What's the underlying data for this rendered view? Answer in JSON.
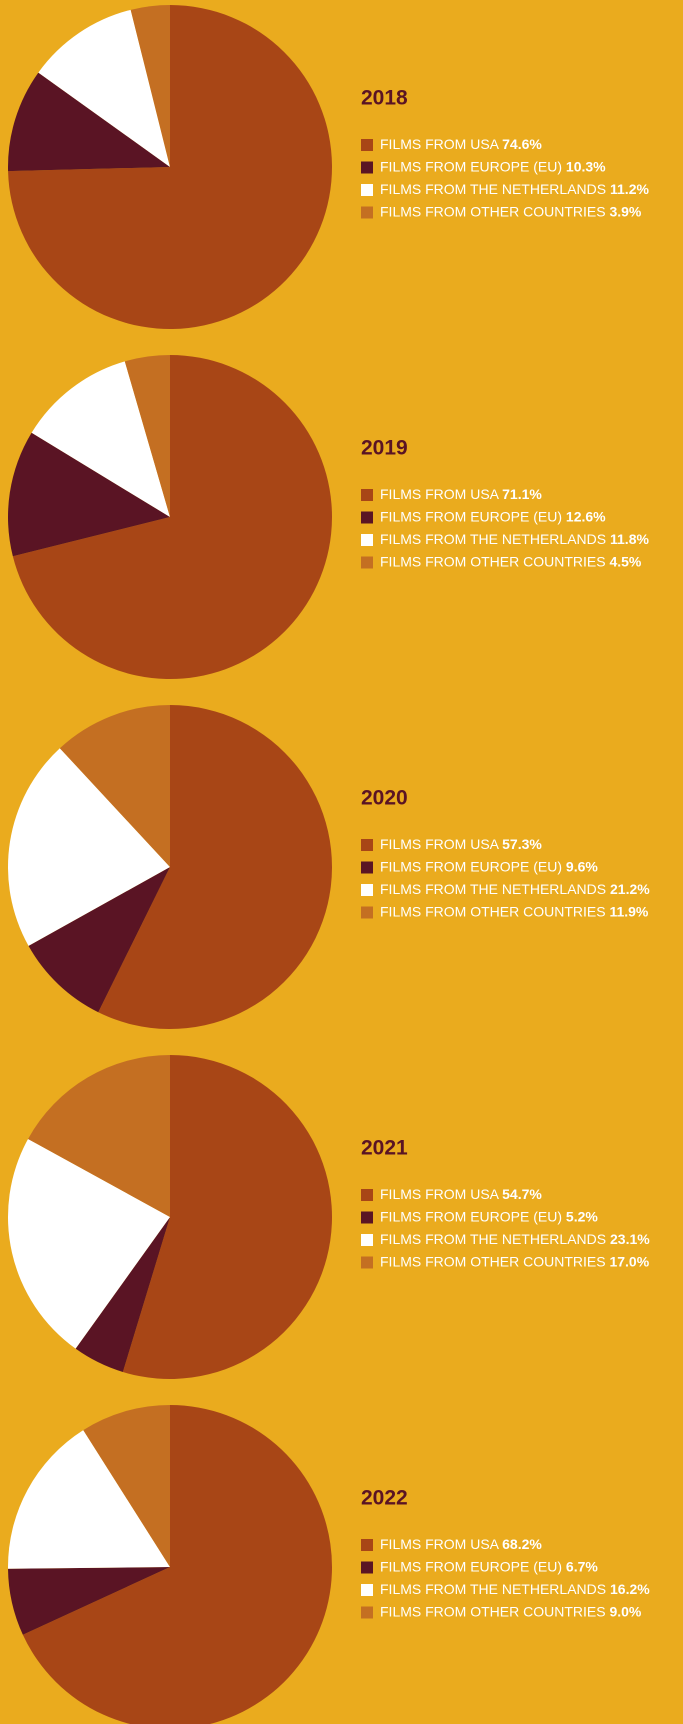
{
  "chart_data": [
    {
      "type": "pie",
      "title": "2018",
      "categories": [
        "FILMS FROM USA",
        "FILMS FROM EUROPE (EU)",
        "FILMS FROM THE NETHERLANDS",
        "FILMS FROM OTHER COUNTRIES"
      ],
      "values": [
        74.6,
        10.3,
        11.2,
        3.9
      ],
      "value_labels": [
        "74.6%",
        "10.3%",
        "11.2%",
        "3.9%"
      ],
      "colors": [
        "#a84616",
        "#5a1424",
        "#ffffff",
        "#c46f22"
      ]
    },
    {
      "type": "pie",
      "title": "2019",
      "categories": [
        "FILMS FROM USA",
        "FILMS FROM EUROPE (EU)",
        "FILMS FROM THE NETHERLANDS",
        "FILMS FROM OTHER COUNTRIES"
      ],
      "values": [
        71.1,
        12.6,
        11.8,
        4.5
      ],
      "value_labels": [
        "71.1%",
        "12.6%",
        "11.8%",
        "4.5%"
      ],
      "colors": [
        "#a84616",
        "#5a1424",
        "#ffffff",
        "#c46f22"
      ]
    },
    {
      "type": "pie",
      "title": "2020",
      "categories": [
        "FILMS FROM USA",
        "FILMS FROM EUROPE (EU)",
        "FILMS FROM THE NETHERLANDS",
        "FILMS FROM OTHER COUNTRIES"
      ],
      "values": [
        57.3,
        9.6,
        21.2,
        11.9
      ],
      "value_labels": [
        "57.3%",
        "9.6%",
        "21.2%",
        "11.9%"
      ],
      "colors": [
        "#a84616",
        "#5a1424",
        "#ffffff",
        "#c46f22"
      ]
    },
    {
      "type": "pie",
      "title": "2021",
      "categories": [
        "FILMS FROM USA",
        "FILMS FROM EUROPE (EU)",
        "FILMS FROM THE NETHERLANDS",
        "FILMS FROM OTHER COUNTRIES"
      ],
      "values": [
        54.7,
        5.2,
        23.1,
        17.0
      ],
      "value_labels": [
        "54.7%",
        "5.2%",
        "23.1%",
        "17.0%"
      ],
      "colors": [
        "#a84616",
        "#5a1424",
        "#ffffff",
        "#c46f22"
      ]
    },
    {
      "type": "pie",
      "title": "2022",
      "categories": [
        "FILMS FROM USA",
        "FILMS FROM EUROPE (EU)",
        "FILMS FROM THE NETHERLANDS",
        "FILMS FROM OTHER COUNTRIES"
      ],
      "values": [
        68.2,
        6.7,
        16.2,
        9.0
      ],
      "value_labels": [
        "68.2%",
        "6.7%",
        "16.2%",
        "9.0%"
      ],
      "colors": [
        "#a84616",
        "#5a1424",
        "#ffffff",
        "#c46f22"
      ]
    }
  ]
}
